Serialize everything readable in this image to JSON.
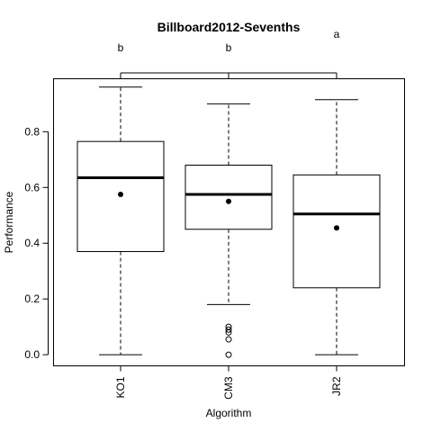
{
  "chart_data": {
    "type": "boxplot",
    "title": "Billboard2012-Sevenths",
    "xlabel": "Algorithm",
    "ylabel": "Performance",
    "ylim": [
      -0.04,
      0.99
    ],
    "y_ticks": [
      "0.0",
      "0.2",
      "0.4",
      "0.6",
      "0.8"
    ],
    "grid": false,
    "categories": [
      "KO1",
      "CM3",
      "JR2"
    ],
    "series": [
      {
        "category": "KO1",
        "group_letter": "b",
        "whisker_low": 0.0,
        "q1": 0.37,
        "median": 0.635,
        "q3": 0.765,
        "whisker_high": 0.96,
        "mean": 0.575,
        "outliers": []
      },
      {
        "category": "CM3",
        "group_letter": "b",
        "whisker_low": 0.18,
        "q1": 0.45,
        "median": 0.575,
        "q3": 0.68,
        "whisker_high": 0.9,
        "mean": 0.55,
        "outliers": [
          0.1,
          0.09,
          0.08,
          0.055,
          0.0
        ]
      },
      {
        "category": "JR2",
        "group_letter": "a",
        "whisker_low": 0.0,
        "q1": 0.24,
        "median": 0.505,
        "q3": 0.645,
        "whisker_high": 0.915,
        "mean": 0.455,
        "outliers": []
      }
    ]
  }
}
